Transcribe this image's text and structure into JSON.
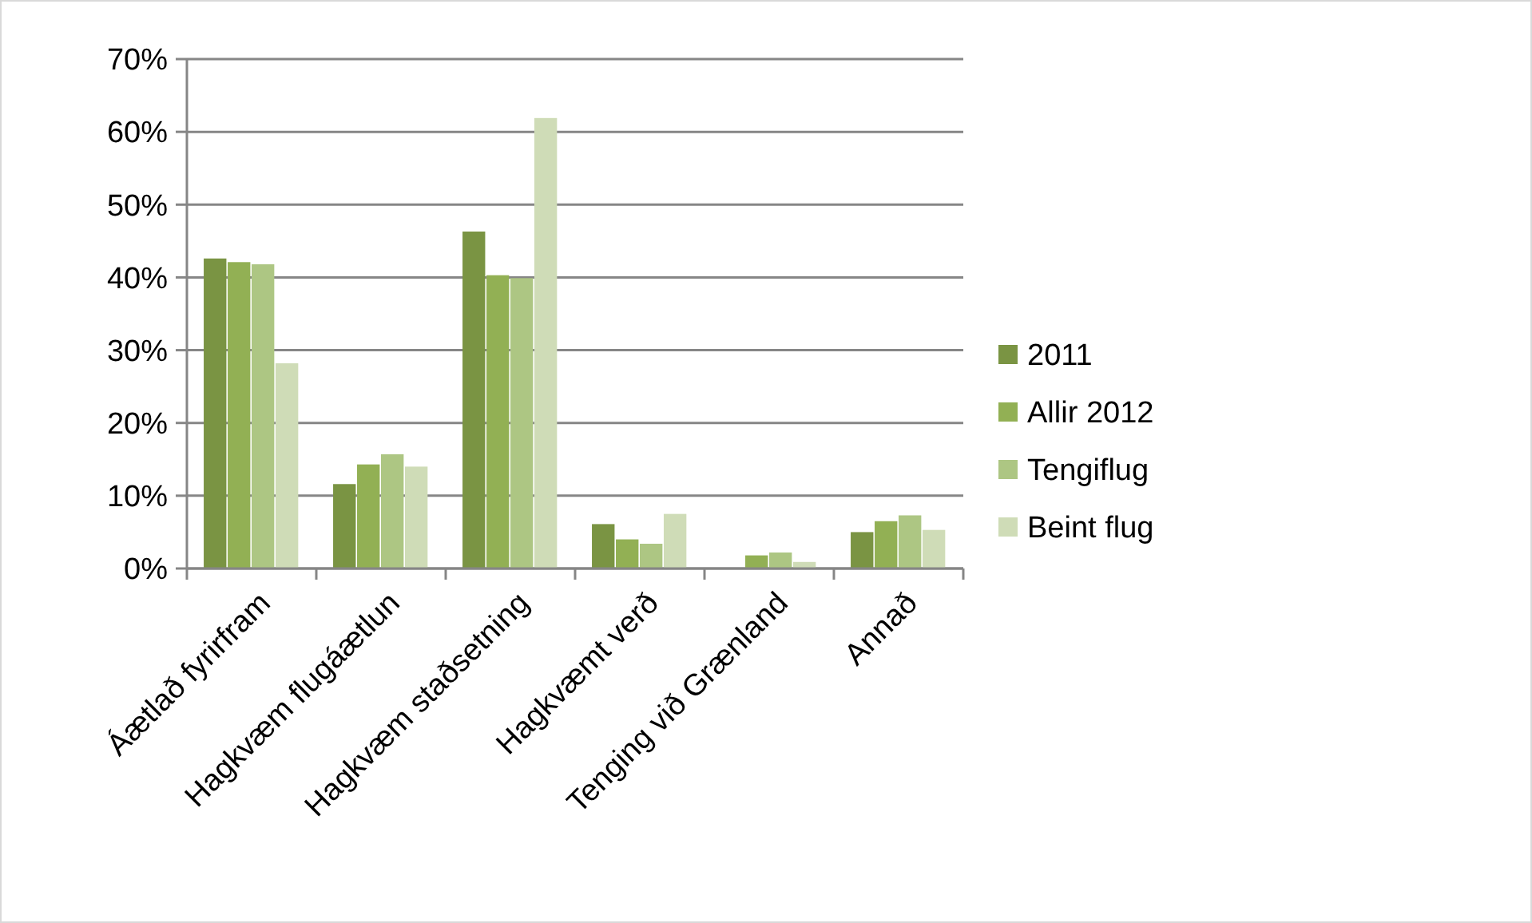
{
  "chart_data": {
    "type": "bar",
    "categories": [
      "Áætlað fyrirfram",
      "Hagkvæm flugáætlun",
      "Hagkvæm staðsetning",
      "Hagkvæmt verð",
      "Tenging við Grænland",
      "Annað"
    ],
    "series": [
      {
        "name": "2011",
        "color": "#7a9443",
        "values": [
          42.6,
          11.6,
          46.3,
          6.1,
          null,
          5.0
        ]
      },
      {
        "name": "Allir 2012",
        "color": "#92b054",
        "values": [
          42.1,
          14.3,
          40.3,
          4.0,
          1.8,
          6.5
        ]
      },
      {
        "name": "Tengiflug",
        "color": "#adc683",
        "values": [
          41.8,
          15.7,
          39.9,
          3.4,
          2.2,
          7.3
        ]
      },
      {
        "name": "Beint flug",
        "color": "#cfdcb7",
        "values": [
          28.2,
          14.0,
          61.9,
          7.5,
          0.9,
          5.3
        ]
      }
    ],
    "ylim": [
      0,
      70
    ],
    "yticks": [
      {
        "value": 0,
        "label": "0%"
      },
      {
        "value": 10,
        "label": "10%"
      },
      {
        "value": 20,
        "label": "20%"
      },
      {
        "value": 30,
        "label": "30%"
      },
      {
        "value": 40,
        "label": "40%"
      },
      {
        "value": 50,
        "label": "50%"
      },
      {
        "value": 60,
        "label": "60%"
      },
      {
        "value": 70,
        "label": "70%"
      }
    ],
    "grid": "y",
    "legend": "right"
  }
}
